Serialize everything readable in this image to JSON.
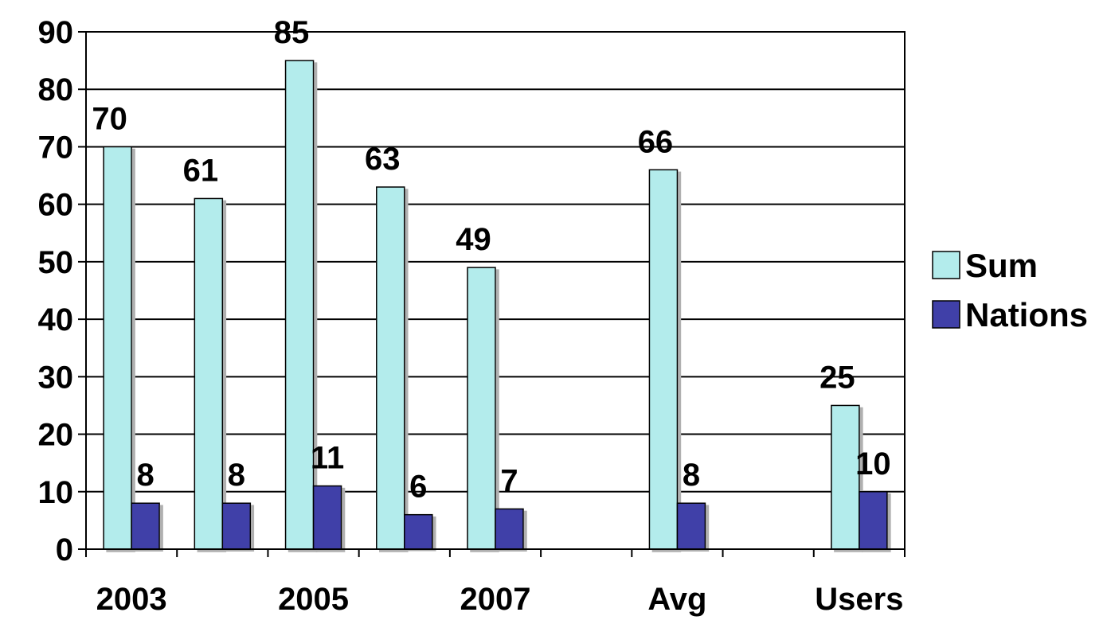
{
  "chart_data": {
    "type": "bar",
    "categories": [
      "2003",
      "",
      "2005",
      "",
      "2007",
      "",
      "Avg",
      "",
      "Users"
    ],
    "series": [
      {
        "name": "Sum",
        "color": "#b3ecec",
        "values": [
          70,
          61,
          85,
          63,
          49,
          null,
          66,
          null,
          25
        ]
      },
      {
        "name": "Nations",
        "color": "#4040a8",
        "values": [
          8,
          8,
          11,
          6,
          7,
          null,
          8,
          null,
          10
        ]
      }
    ],
    "y_ticks": [
      "0",
      "10",
      "20",
      "30",
      "40",
      "50",
      "60",
      "70",
      "80",
      "90"
    ],
    "ylim": [
      0,
      90
    ],
    "grid": true,
    "legend_placement": "right",
    "data_labels": true
  }
}
